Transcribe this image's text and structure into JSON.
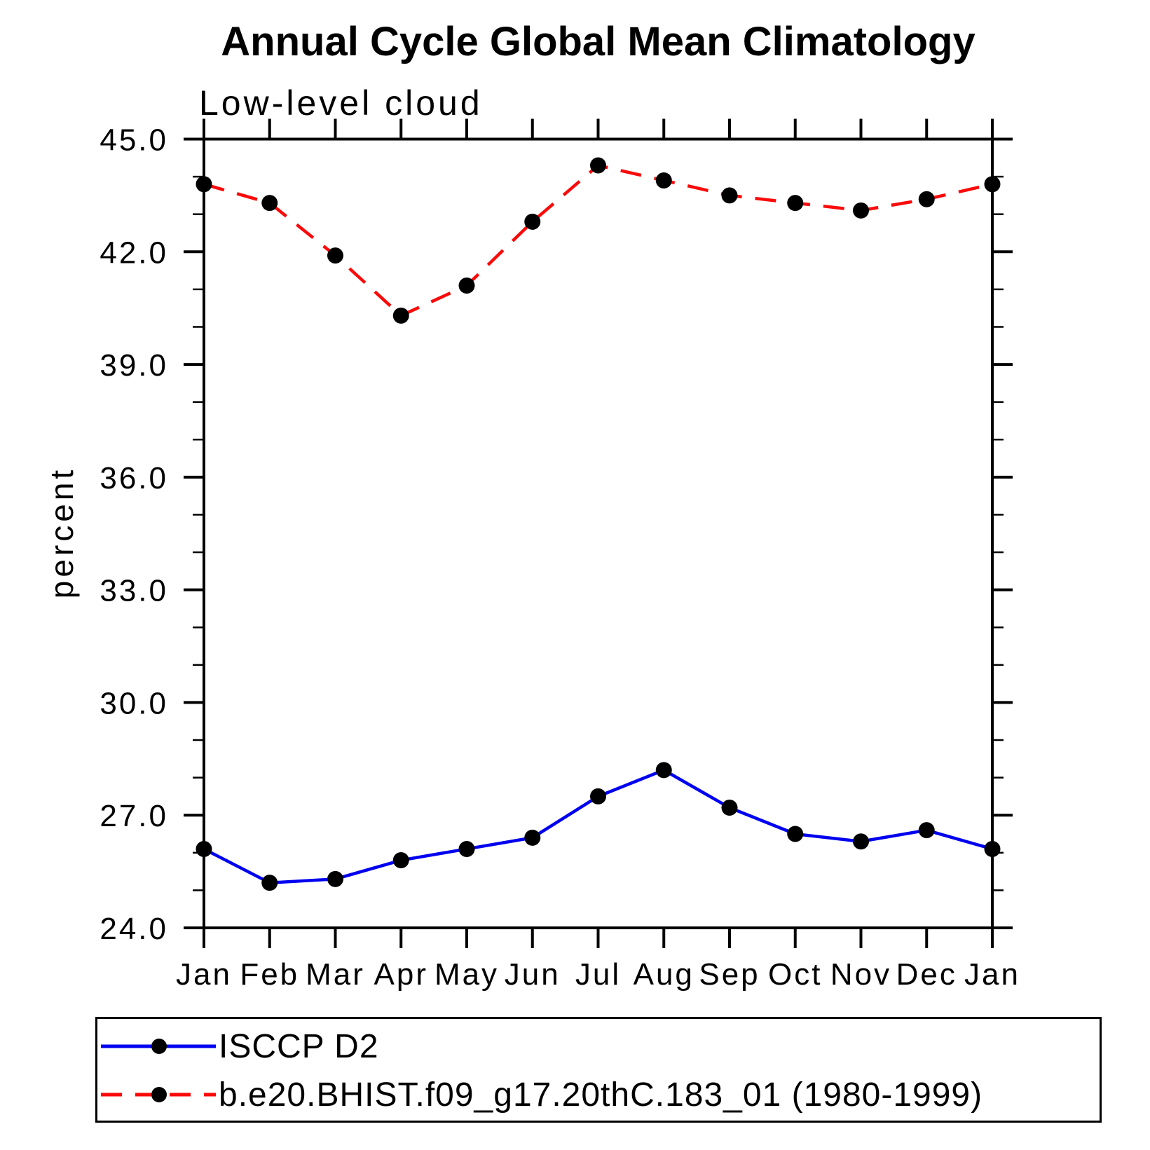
{
  "chart_data": {
    "type": "line",
    "title": "Annual Cycle Global Mean Climatology",
    "subtitle": "Low-level cloud",
    "xlabel": "",
    "ylabel": "percent",
    "categories": [
      "Jan",
      "Feb",
      "Mar",
      "Apr",
      "May",
      "Jun",
      "Jul",
      "Aug",
      "Sep",
      "Oct",
      "Nov",
      "Dec",
      "Jan"
    ],
    "series": [
      {
        "name": "ISCCP D2",
        "color": "#0000f0",
        "line_style": "solid",
        "marker": "filled-black-circle",
        "values": [
          26.1,
          25.2,
          25.3,
          25.8,
          26.1,
          26.4,
          27.5,
          28.2,
          27.2,
          26.5,
          26.3,
          26.6,
          26.1
        ]
      },
      {
        "name": "b.e20.BHIST.f09_g17.20thC.183_01 (1980-1999)",
        "color": "#fa0a0a",
        "line_style": "dashed",
        "marker": "filled-black-circle",
        "values": [
          43.8,
          43.3,
          41.9,
          40.3,
          41.1,
          42.8,
          44.3,
          43.9,
          43.5,
          43.3,
          43.1,
          43.4,
          43.8
        ]
      }
    ],
    "ylim": [
      24.0,
      45.0
    ],
    "y_major_ticks": [
      45.0,
      42.0,
      39.0,
      36.0,
      33.0,
      30.0,
      27.0,
      24.0
    ],
    "y_tick_labels": [
      "45.0",
      "42.0",
      "39.0",
      "36.0",
      "33.0",
      "30.0",
      "27.0",
      "24.0"
    ],
    "y_minor_tick_step": 1.0,
    "marker_color": "#000000",
    "grid": false,
    "axis_frame": "box with outward ticks on all four sides",
    "legend_position": "boxed legend below plot, bottom-left"
  }
}
